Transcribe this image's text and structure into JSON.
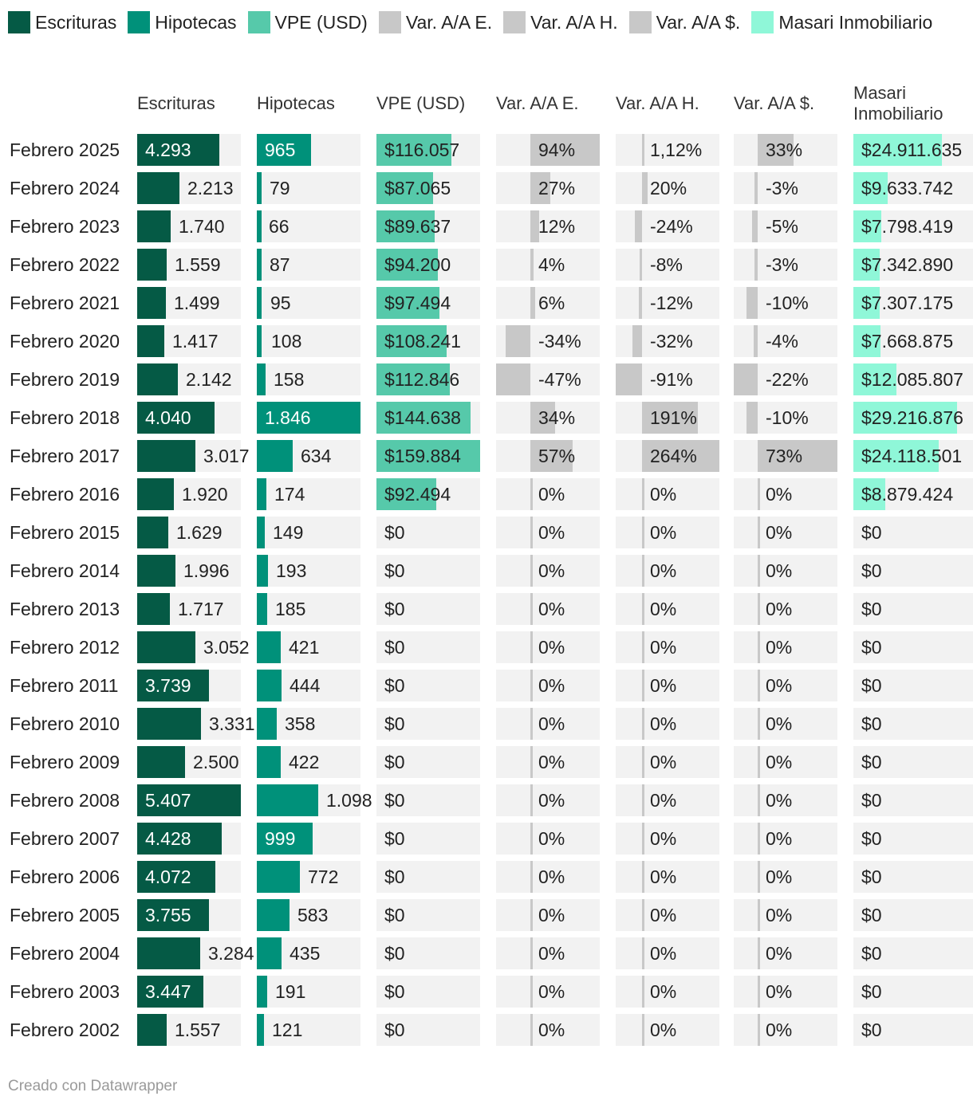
{
  "legend": [
    {
      "label": "Escrituras",
      "color": "#055a45"
    },
    {
      "label": "Hipotecas",
      "color": "#00917a"
    },
    {
      "label": "VPE (USD)",
      "color": "#56c9aa"
    },
    {
      "label": "Var. A/A E.",
      "color": "#c8c8c8"
    },
    {
      "label": "Var. A/A H.",
      "color": "#c8c8c8"
    },
    {
      "label": "Var. A/A $.",
      "color": "#c8c8c8"
    },
    {
      "label": "Masari Inmobiliario",
      "color": "#8ff7d8"
    }
  ],
  "chart_data": {
    "type": "table",
    "columns": [
      {
        "key": "escrituras",
        "header": "Escrituras",
        "color": "#055a45",
        "kind": "bar"
      },
      {
        "key": "hipotecas",
        "header": "Hipotecas",
        "color": "#00917a",
        "kind": "bar"
      },
      {
        "key": "vpe",
        "header": "VPE (USD)",
        "color": "#56c9aa",
        "kind": "bar"
      },
      {
        "key": "var_e",
        "header": "Var. A/A E.",
        "color": "#c8c8c8",
        "kind": "diverging"
      },
      {
        "key": "var_h",
        "header": "Var. A/A H.",
        "color": "#c8c8c8",
        "kind": "diverging"
      },
      {
        "key": "var_usd",
        "header": "Var. A/A $.",
        "color": "#c8c8c8",
        "kind": "diverging"
      },
      {
        "key": "masari",
        "header": "Masari\nInmobiliario",
        "color": "#8ff7d8",
        "kind": "bar"
      }
    ],
    "rows": [
      {
        "label": "Febrero 2025",
        "escrituras": 4293,
        "hipotecas": 965,
        "vpe": 116057,
        "var_e": 94,
        "var_h": 1.12,
        "var_usd": 33,
        "masari": 24911635,
        "text": {
          "escrituras": "4.293",
          "hipotecas": "965",
          "vpe": "$116.057",
          "var_e": "94%",
          "var_h": "1,12%",
          "var_usd": "33%",
          "masari": "$24.911.635"
        }
      },
      {
        "label": "Febrero 2024",
        "escrituras": 2213,
        "hipotecas": 79,
        "vpe": 87065,
        "var_e": 27,
        "var_h": 20,
        "var_usd": -3,
        "masari": 9633742,
        "text": {
          "escrituras": "2.213",
          "hipotecas": "79",
          "vpe": "$87.065",
          "var_e": "27%",
          "var_h": "20%",
          "var_usd": "-3%",
          "masari": "$9.633.742"
        }
      },
      {
        "label": "Febrero 2023",
        "escrituras": 1740,
        "hipotecas": 66,
        "vpe": 89637,
        "var_e": 12,
        "var_h": -24,
        "var_usd": -5,
        "masari": 7798419,
        "text": {
          "escrituras": "1.740",
          "hipotecas": "66",
          "vpe": "$89.637",
          "var_e": "12%",
          "var_h": "-24%",
          "var_usd": "-5%",
          "masari": "$7.798.419"
        }
      },
      {
        "label": "Febrero 2022",
        "escrituras": 1559,
        "hipotecas": 87,
        "vpe": 94200,
        "var_e": 4,
        "var_h": -8,
        "var_usd": -3,
        "masari": 7342890,
        "text": {
          "escrituras": "1.559",
          "hipotecas": "87",
          "vpe": "$94.200",
          "var_e": "4%",
          "var_h": "-8%",
          "var_usd": "-3%",
          "masari": "$7.342.890"
        }
      },
      {
        "label": "Febrero 2021",
        "escrituras": 1499,
        "hipotecas": 95,
        "vpe": 97494,
        "var_e": 6,
        "var_h": -12,
        "var_usd": -10,
        "masari": 7307175,
        "text": {
          "escrituras": "1.499",
          "hipotecas": "95",
          "vpe": "$97.494",
          "var_e": "6%",
          "var_h": "-12%",
          "var_usd": "-10%",
          "masari": "$7.307.175"
        }
      },
      {
        "label": "Febrero 2020",
        "escrituras": 1417,
        "hipotecas": 108,
        "vpe": 108241,
        "var_e": -34,
        "var_h": -32,
        "var_usd": -4,
        "masari": 7668875,
        "text": {
          "escrituras": "1.417",
          "hipotecas": "108",
          "vpe": "$108.241",
          "var_e": "-34%",
          "var_h": "-32%",
          "var_usd": "-4%",
          "masari": "$7.668.875"
        }
      },
      {
        "label": "Febrero 2019",
        "escrituras": 2142,
        "hipotecas": 158,
        "vpe": 112846,
        "var_e": -47,
        "var_h": -91,
        "var_usd": -22,
        "masari": 12085807,
        "text": {
          "escrituras": "2.142",
          "hipotecas": "158",
          "vpe": "$112.846",
          "var_e": "-47%",
          "var_h": "-91%",
          "var_usd": "-22%",
          "masari": "$12.085.807"
        }
      },
      {
        "label": "Febrero 2018",
        "escrituras": 4040,
        "hipotecas": 1846,
        "vpe": 144638,
        "var_e": 34,
        "var_h": 191,
        "var_usd": -10,
        "masari": 29216876,
        "text": {
          "escrituras": "4.040",
          "hipotecas": "1.846",
          "vpe": "$144.638",
          "var_e": "34%",
          "var_h": "191%",
          "var_usd": "-10%",
          "masari": "$29.216.876"
        }
      },
      {
        "label": "Febrero 2017",
        "escrituras": 3017,
        "hipotecas": 634,
        "vpe": 159884,
        "var_e": 57,
        "var_h": 264,
        "var_usd": 73,
        "masari": 24118501,
        "text": {
          "escrituras": "3.017",
          "hipotecas": "634",
          "vpe": "$159.884",
          "var_e": "57%",
          "var_h": "264%",
          "var_usd": "73%",
          "masari": "$24.118.501"
        }
      },
      {
        "label": "Febrero 2016",
        "escrituras": 1920,
        "hipotecas": 174,
        "vpe": 92494,
        "var_e": 0,
        "var_h": 0,
        "var_usd": 0,
        "masari": 8879424,
        "text": {
          "escrituras": "1.920",
          "hipotecas": "174",
          "vpe": "$92.494",
          "var_e": "0%",
          "var_h": "0%",
          "var_usd": "0%",
          "masari": "$8.879.424"
        }
      },
      {
        "label": "Febrero 2015",
        "escrituras": 1629,
        "hipotecas": 149,
        "vpe": 0,
        "var_e": 0,
        "var_h": 0,
        "var_usd": 0,
        "masari": 0,
        "text": {
          "escrituras": "1.629",
          "hipotecas": "149",
          "vpe": "$0",
          "var_e": "0%",
          "var_h": "0%",
          "var_usd": "0%",
          "masari": "$0"
        }
      },
      {
        "label": "Febrero 2014",
        "escrituras": 1996,
        "hipotecas": 193,
        "vpe": 0,
        "var_e": 0,
        "var_h": 0,
        "var_usd": 0,
        "masari": 0,
        "text": {
          "escrituras": "1.996",
          "hipotecas": "193",
          "vpe": "$0",
          "var_e": "0%",
          "var_h": "0%",
          "var_usd": "0%",
          "masari": "$0"
        }
      },
      {
        "label": "Febrero 2013",
        "escrituras": 1717,
        "hipotecas": 185,
        "vpe": 0,
        "var_e": 0,
        "var_h": 0,
        "var_usd": 0,
        "masari": 0,
        "text": {
          "escrituras": "1.717",
          "hipotecas": "185",
          "vpe": "$0",
          "var_e": "0%",
          "var_h": "0%",
          "var_usd": "0%",
          "masari": "$0"
        }
      },
      {
        "label": "Febrero 2012",
        "escrituras": 3052,
        "hipotecas": 421,
        "vpe": 0,
        "var_e": 0,
        "var_h": 0,
        "var_usd": 0,
        "masari": 0,
        "text": {
          "escrituras": "3.052",
          "hipotecas": "421",
          "vpe": "$0",
          "var_e": "0%",
          "var_h": "0%",
          "var_usd": "0%",
          "masari": "$0"
        }
      },
      {
        "label": "Febrero 2011",
        "escrituras": 3739,
        "hipotecas": 444,
        "vpe": 0,
        "var_e": 0,
        "var_h": 0,
        "var_usd": 0,
        "masari": 0,
        "text": {
          "escrituras": "3.739",
          "hipotecas": "444",
          "vpe": "$0",
          "var_e": "0%",
          "var_h": "0%",
          "var_usd": "0%",
          "masari": "$0"
        }
      },
      {
        "label": "Febrero 2010",
        "escrituras": 3331,
        "hipotecas": 358,
        "vpe": 0,
        "var_e": 0,
        "var_h": 0,
        "var_usd": 0,
        "masari": 0,
        "text": {
          "escrituras": "3.331",
          "hipotecas": "358",
          "vpe": "$0",
          "var_e": "0%",
          "var_h": "0%",
          "var_usd": "0%",
          "masari": "$0"
        }
      },
      {
        "label": "Febrero 2009",
        "escrituras": 2500,
        "hipotecas": 422,
        "vpe": 0,
        "var_e": 0,
        "var_h": 0,
        "var_usd": 0,
        "masari": 0,
        "text": {
          "escrituras": "2.500",
          "hipotecas": "422",
          "vpe": "$0",
          "var_e": "0%",
          "var_h": "0%",
          "var_usd": "0%",
          "masari": "$0"
        }
      },
      {
        "label": "Febrero 2008",
        "escrituras": 5407,
        "hipotecas": 1098,
        "vpe": 0,
        "var_e": 0,
        "var_h": 0,
        "var_usd": 0,
        "masari": 0,
        "text": {
          "escrituras": "5.407",
          "hipotecas": "1.098",
          "vpe": "$0",
          "var_e": "0%",
          "var_h": "0%",
          "var_usd": "0%",
          "masari": "$0"
        }
      },
      {
        "label": "Febrero 2007",
        "escrituras": 4428,
        "hipotecas": 999,
        "vpe": 0,
        "var_e": 0,
        "var_h": 0,
        "var_usd": 0,
        "masari": 0,
        "text": {
          "escrituras": "4.428",
          "hipotecas": "999",
          "vpe": "$0",
          "var_e": "0%",
          "var_h": "0%",
          "var_usd": "0%",
          "masari": "$0"
        }
      },
      {
        "label": "Febrero 2006",
        "escrituras": 4072,
        "hipotecas": 772,
        "vpe": 0,
        "var_e": 0,
        "var_h": 0,
        "var_usd": 0,
        "masari": 0,
        "text": {
          "escrituras": "4.072",
          "hipotecas": "772",
          "vpe": "$0",
          "var_e": "0%",
          "var_h": "0%",
          "var_usd": "0%",
          "masari": "$0"
        }
      },
      {
        "label": "Febrero 2005",
        "escrituras": 3755,
        "hipotecas": 583,
        "vpe": 0,
        "var_e": 0,
        "var_h": 0,
        "var_usd": 0,
        "masari": 0,
        "text": {
          "escrituras": "3.755",
          "hipotecas": "583",
          "vpe": "$0",
          "var_e": "0%",
          "var_h": "0%",
          "var_usd": "0%",
          "masari": "$0"
        }
      },
      {
        "label": "Febrero 2004",
        "escrituras": 3284,
        "hipotecas": 435,
        "vpe": 0,
        "var_e": 0,
        "var_h": 0,
        "var_usd": 0,
        "masari": 0,
        "text": {
          "escrituras": "3.284",
          "hipotecas": "435",
          "vpe": "$0",
          "var_e": "0%",
          "var_h": "0%",
          "var_usd": "0%",
          "masari": "$0"
        }
      },
      {
        "label": "Febrero 2003",
        "escrituras": 3447,
        "hipotecas": 191,
        "vpe": 0,
        "var_e": 0,
        "var_h": 0,
        "var_usd": 0,
        "masari": 0,
        "text": {
          "escrituras": "3.447",
          "hipotecas": "191",
          "vpe": "$0",
          "var_e": "0%",
          "var_h": "0%",
          "var_usd": "0%",
          "masari": "$0"
        }
      },
      {
        "label": "Febrero 2002",
        "escrituras": 1557,
        "hipotecas": 121,
        "vpe": 0,
        "var_e": 0,
        "var_h": 0,
        "var_usd": 0,
        "masari": 0,
        "text": {
          "escrituras": "1.557",
          "hipotecas": "121",
          "vpe": "$0",
          "var_e": "0%",
          "var_h": "0%",
          "var_usd": "0%",
          "masari": "$0"
        }
      }
    ]
  },
  "footer": {
    "credit": "Creado con Datawrapper"
  }
}
